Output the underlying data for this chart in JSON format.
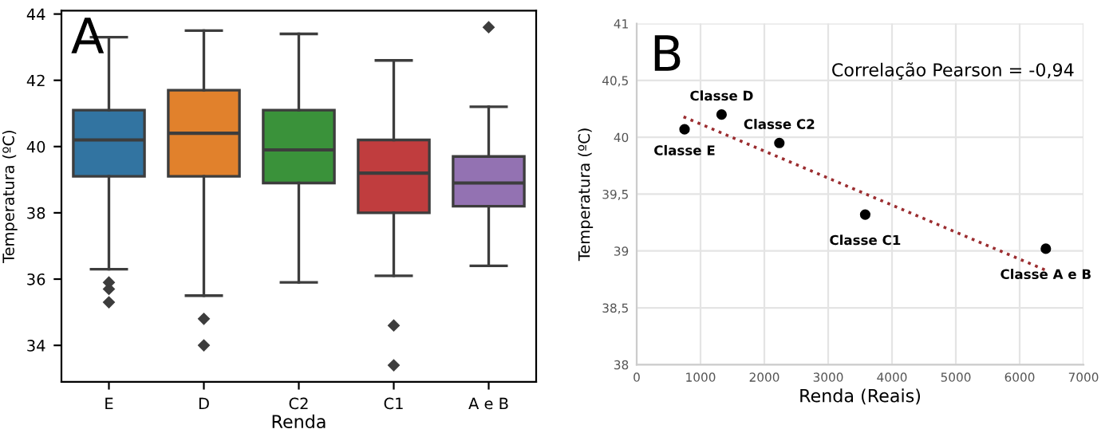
{
  "chart_data": [
    {
      "type": "box",
      "title": "A",
      "xlabel": "Renda",
      "ylabel": "Temperatura (ºC)",
      "categories": [
        "E",
        "D",
        "C2",
        "C1",
        "A e B"
      ],
      "ylim": [
        32.9,
        44.1
      ],
      "yticks": [
        34,
        36,
        38,
        40,
        42,
        44
      ],
      "grid": false,
      "legend": false,
      "colors": [
        "#3274a1",
        "#e1812c",
        "#3a923a",
        "#c03d3e",
        "#9372b2"
      ],
      "marker": "diamond",
      "boxes": [
        {
          "low": 36.3,
          "q1": 39.1,
          "median": 40.2,
          "q3": 41.1,
          "high": 43.3,
          "outliers": [
            35.9,
            35.7,
            35.3
          ]
        },
        {
          "low": 35.5,
          "q1": 39.1,
          "median": 40.4,
          "q3": 41.7,
          "high": 43.5,
          "outliers": [
            34.8,
            34.0
          ]
        },
        {
          "low": 35.9,
          "q1": 38.9,
          "median": 39.9,
          "q3": 41.1,
          "high": 43.4
        },
        {
          "low": 36.1,
          "q1": 38.0,
          "median": 39.2,
          "q3": 40.2,
          "high": 42.6,
          "outliers": [
            34.6,
            33.4
          ]
        },
        {
          "low": 36.4,
          "q1": 38.2,
          "median": 38.9,
          "q3": 39.7,
          "high": 41.2,
          "outliers": [
            43.6
          ]
        }
      ]
    },
    {
      "type": "scatter",
      "title": "B",
      "xlabel": "Renda (Reais)",
      "ylabel": "Temperatura (ºC)",
      "xlim": [
        0,
        7000
      ],
      "xticks": [
        0,
        1000,
        2000,
        3000,
        4000,
        5000,
        6000,
        7000
      ],
      "ylim": [
        38,
        41
      ],
      "yticks": [
        38,
        {
          "value": 38.5,
          "label": "38,5"
        },
        39,
        {
          "value": 39.5,
          "label": "39,5"
        },
        40,
        {
          "value": 40.5,
          "label": "40,5"
        },
        41
      ],
      "grid": true,
      "legend": false,
      "series": [
        {
          "type": "scatter",
          "color": "#000000",
          "marker": "circle",
          "x": [
            750,
            1330,
            2235,
            3580,
            6410
          ],
          "values": [
            40.07,
            40.2,
            39.95,
            39.32,
            39.02
          ]
        },
        {
          "type": "line",
          "color": "#9b2d30",
          "line_style": "dotted",
          "marker": "none",
          "x": [
            734,
            6411
          ],
          "values": [
            40.18,
            38.83
          ]
        }
      ],
      "annotations": [
        {
          "text": "Classe E",
          "x": 750,
          "y": 40.07
        },
        {
          "text": "Classe D",
          "x": 1330,
          "y": 40.2
        },
        {
          "text": "Classe C2",
          "x": 2235,
          "y": 39.95
        },
        {
          "text": "Classe C1",
          "x": 3580,
          "y": 39.32
        },
        {
          "text": "Classe A e B",
          "x": 6410,
          "y": 39.02
        },
        "Correlação Pearson = -0,94"
      ]
    }
  ]
}
